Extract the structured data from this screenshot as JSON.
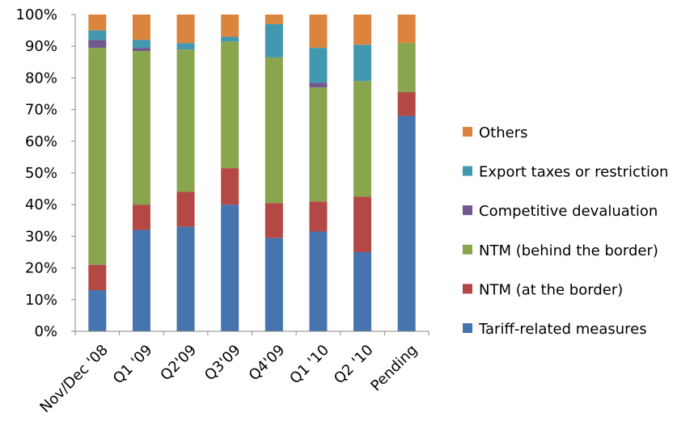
{
  "chart_data": {
    "type": "bar",
    "stacked": true,
    "percent": true,
    "title": "",
    "xlabel": "",
    "ylabel": "",
    "ylim": [
      0,
      100
    ],
    "yticks": [
      "0%",
      "10%",
      "20%",
      "30%",
      "40%",
      "50%",
      "60%",
      "70%",
      "80%",
      "90%",
      "100%"
    ],
    "categories": [
      "Nov/Dec '08",
      "Q1 '09",
      "Q2'09",
      "Q3'09",
      "Q4'09",
      "Q1 '10",
      "Q2 '10",
      "Pending"
    ],
    "grid": false,
    "legend_position": "right",
    "series": [
      {
        "name": "Tariff-related measures",
        "color": "#4674AE",
        "values": [
          13,
          32,
          33,
          40,
          29.5,
          31.5,
          25,
          68
        ]
      },
      {
        "name": "NTM (at the border)",
        "color": "#B44845",
        "values": [
          8,
          8,
          11,
          11.5,
          11,
          9.5,
          17.5,
          7.5
        ]
      },
      {
        "name": "NTM (behind the border)",
        "color": "#89A54E",
        "values": [
          68.5,
          48.5,
          45,
          40,
          46,
          36,
          36.5,
          15.5
        ]
      },
      {
        "name": "Competitive devaluation",
        "color": "#71588F",
        "values": [
          2.5,
          1,
          0,
          0,
          0,
          1.5,
          0,
          0
        ]
      },
      {
        "name": "Export taxes or restriction",
        "color": "#4198AF",
        "values": [
          3,
          2.5,
          2,
          1.5,
          10.5,
          11,
          11.5,
          0
        ]
      },
      {
        "name": "Others",
        "color": "#DB843D",
        "values": [
          5,
          8,
          9,
          7,
          3,
          10.5,
          9.5,
          9
        ]
      }
    ]
  }
}
